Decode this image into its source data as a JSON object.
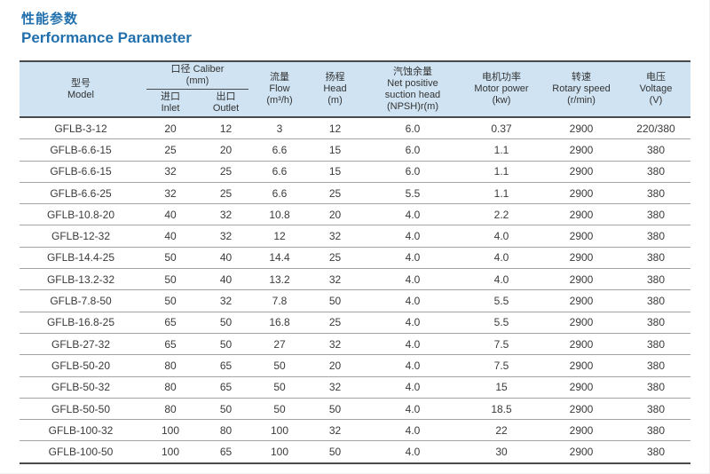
{
  "header": {
    "title_cn": "性能参数",
    "title_en": "Performance Parameter"
  },
  "colors": {
    "accent_blue": "#2170ad",
    "header_bg": "#cfe3f2",
    "heavy_border": "#4a4a4a",
    "row_border": "#a3a3a3",
    "text": "#3a3a3a"
  },
  "table": {
    "columns": {
      "model": {
        "cn": "型号",
        "en": "Model"
      },
      "caliber_group": {
        "line1": "口径 Caliber",
        "line2": "(mm)"
      },
      "inlet": {
        "cn": "进口",
        "en": "Inlet"
      },
      "outlet": {
        "cn": "出口",
        "en": "Outlet"
      },
      "flow": {
        "cn": "流量",
        "en": "Flow",
        "unit": "(m³/h)"
      },
      "head": {
        "cn": "扬程",
        "en": "Head",
        "unit": "(m)"
      },
      "npsh": {
        "cn": "汽蚀余量",
        "en1": "Net positive",
        "en2": "suction head",
        "unit": "(NPSH)r(m)"
      },
      "motor_power": {
        "cn": "电机功率",
        "en": "Motor power",
        "unit": "(kw)"
      },
      "rotary_speed": {
        "cn": "转速",
        "en": "Rotary speed",
        "unit": "(r/min)"
      },
      "voltage": {
        "cn": "电压",
        "en": "Voltage",
        "unit": "(V)"
      }
    },
    "rows": [
      [
        "GFLB-3-12",
        "20",
        "12",
        "3",
        "12",
        "6.0",
        "0.37",
        "2900",
        "220/380"
      ],
      [
        "GFLB-6.6-15",
        "25",
        "20",
        "6.6",
        "15",
        "6.0",
        "1.1",
        "2900",
        "380"
      ],
      [
        "GFLB-6.6-15",
        "32",
        "25",
        "6.6",
        "15",
        "6.0",
        "1.1",
        "2900",
        "380"
      ],
      [
        "GFLB-6.6-25",
        "32",
        "25",
        "6.6",
        "25",
        "5.5",
        "1.1",
        "2900",
        "380"
      ],
      [
        "GFLB-10.8-20",
        "40",
        "32",
        "10.8",
        "20",
        "4.0",
        "2.2",
        "2900",
        "380"
      ],
      [
        "GFLB-12-32",
        "40",
        "32",
        "12",
        "32",
        "4.0",
        "4.0",
        "2900",
        "380"
      ],
      [
        "GFLB-14.4-25",
        "50",
        "40",
        "14.4",
        "25",
        "4.0",
        "4.0",
        "2900",
        "380"
      ],
      [
        "GFLB-13.2-32",
        "50",
        "40",
        "13.2",
        "32",
        "4.0",
        "4.0",
        "2900",
        "380"
      ],
      [
        "GFLB-7.8-50",
        "50",
        "32",
        "7.8",
        "50",
        "4.0",
        "5.5",
        "2900",
        "380"
      ],
      [
        "GFLB-16.8-25",
        "65",
        "50",
        "16.8",
        "25",
        "4.0",
        "5.5",
        "2900",
        "380"
      ],
      [
        "GFLB-27-32",
        "65",
        "50",
        "27",
        "32",
        "4.0",
        "7.5",
        "2900",
        "380"
      ],
      [
        "GFLB-50-20",
        "80",
        "65",
        "50",
        "20",
        "4.0",
        "7.5",
        "2900",
        "380"
      ],
      [
        "GFLB-50-32",
        "80",
        "65",
        "50",
        "32",
        "4.0",
        "15",
        "2900",
        "380"
      ],
      [
        "GFLB-50-50",
        "80",
        "50",
        "50",
        "50",
        "4.0",
        "18.5",
        "2900",
        "380"
      ],
      [
        "GFLB-100-32",
        "100",
        "80",
        "100",
        "32",
        "4.0",
        "22",
        "2900",
        "380"
      ],
      [
        "GFLB-100-50",
        "100",
        "65",
        "100",
        "50",
        "4.0",
        "30",
        "2900",
        "380"
      ]
    ]
  }
}
